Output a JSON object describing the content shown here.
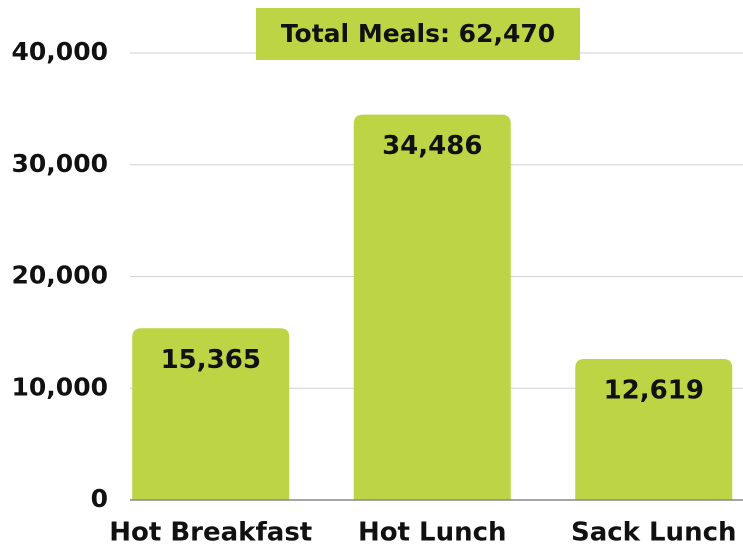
{
  "chart_data": {
    "type": "bar",
    "annotation": "Total Meals: 62,470",
    "categories": [
      "Hot Breakfast",
      "Hot Lunch",
      "Sack Lunch"
    ],
    "values": [
      15365,
      34486,
      12619
    ],
    "value_labels": [
      "15,365",
      "34,486",
      "12,619"
    ],
    "color": "#bdd444",
    "ylim": [
      0,
      40000
    ],
    "yticks": [
      0,
      {
        "value": 10000,
        "label": "10,000"
      },
      {
        "value": 20000,
        "label": "20,000"
      },
      {
        "value": 30000,
        "label": "30,000"
      },
      {
        "value": 40000,
        "label": "40,000"
      }
    ],
    "grid": true
  }
}
